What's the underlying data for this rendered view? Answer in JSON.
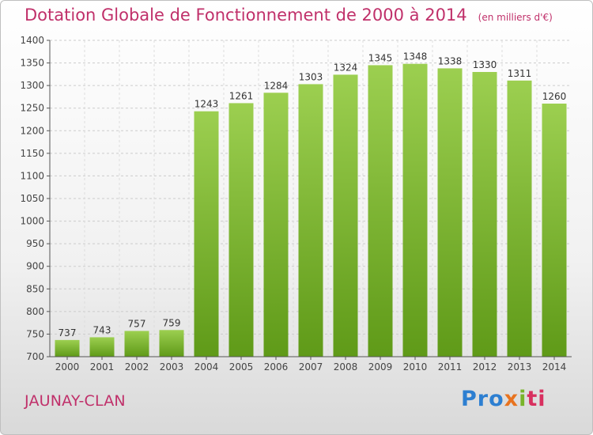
{
  "header": {
    "title": "Dotation Globale de Fonctionnement de 2000 à 2014",
    "unit": "(en milliers d'€)"
  },
  "footer": {
    "place": "JAUNAY-CLAN",
    "logo_parts": [
      "Pro",
      "x",
      "i",
      "ti"
    ]
  },
  "colors": {
    "accent": "#c0306a",
    "bar_light": "#9ccf50",
    "bar_dark": "#5f9a18"
  },
  "chart_data": {
    "type": "bar",
    "title": "Dotation Globale de Fonctionnement de 2000 à 2014",
    "subtitle": "(en milliers d'€)",
    "categories": [
      "2000",
      "2001",
      "2002",
      "2003",
      "2004",
      "2005",
      "2006",
      "2007",
      "2008",
      "2009",
      "2010",
      "2011",
      "2012",
      "2013",
      "2014"
    ],
    "values": [
      737,
      743,
      757,
      759,
      1243,
      1261,
      1284,
      1303,
      1324,
      1345,
      1348,
      1338,
      1330,
      1311,
      1260
    ],
    "ylim": [
      700,
      1400
    ],
    "yticks": [
      700,
      750,
      800,
      850,
      900,
      950,
      1000,
      1050,
      1100,
      1150,
      1200,
      1250,
      1300,
      1350,
      1400
    ],
    "grid": true,
    "data_labels": true,
    "legend": "none"
  }
}
